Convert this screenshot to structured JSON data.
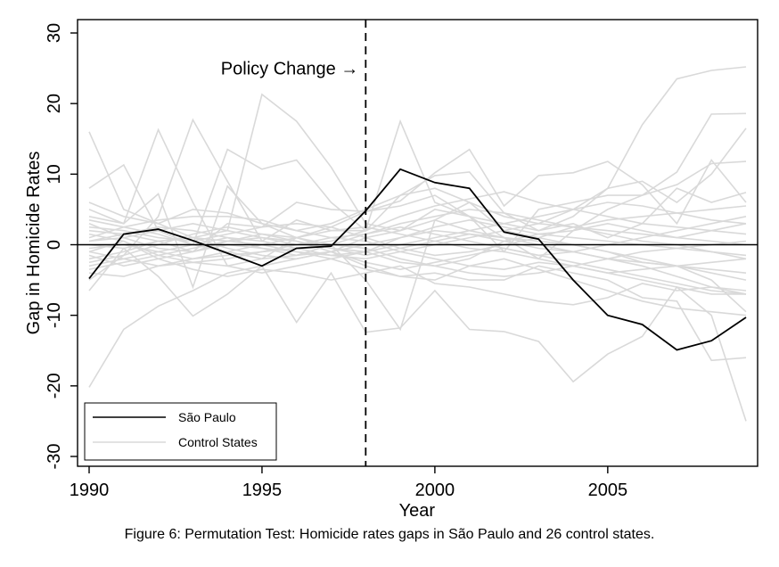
{
  "chart_data": {
    "type": "line",
    "ylabel": "Gap in Homicide Rates",
    "xlabel": "Year",
    "xlim": [
      1990,
      2009
    ],
    "ylim": [
      -30,
      30
    ],
    "x_ticks": [
      1990,
      1995,
      2000,
      2005
    ],
    "x_tick_labels": [
      "1990",
      "1995",
      "2000",
      "2005"
    ],
    "y_ticks": [
      -30,
      -20,
      -10,
      0,
      10,
      20,
      30
    ],
    "y_tick_labels": [
      "-30",
      "-20",
      "-10",
      "0",
      "10",
      "20",
      "30"
    ],
    "grid": false,
    "reference_lines": {
      "horizontal_y": 0,
      "vertical_x": 1998
    },
    "annotation": {
      "text": "Policy Change →",
      "x": 1998,
      "y": 25
    },
    "legend": {
      "position": "bottom-left",
      "entries": [
        "São Paulo",
        "Control States"
      ]
    },
    "colors": {
      "treated": "#000000",
      "controls": "#d9d9d9",
      "axis": "#000000"
    },
    "x": [
      1990,
      1991,
      1992,
      1993,
      1994,
      1995,
      1996,
      1997,
      1998,
      1999,
      2000,
      2001,
      2002,
      2003,
      2004,
      2005,
      2006,
      2007,
      2008,
      2009
    ],
    "series": [
      {
        "name": "São Paulo",
        "role": "treated",
        "values": [
          -4.8,
          1.5,
          2.2,
          0.6,
          -1.2,
          -3.0,
          -0.5,
          -0.2,
          4.8,
          10.7,
          8.8,
          8.0,
          1.8,
          0.8,
          -5.0,
          -10.0,
          -11.3,
          -14.9,
          -13.6,
          -10.3
        ]
      },
      {
        "role": "control",
        "values": [
          16.0,
          5.0,
          3.0,
          1.0,
          2.0,
          21.3,
          17.5,
          11.0,
          3.0,
          2.0,
          5.0,
          4.0,
          3.0,
          2.0,
          4.0,
          8.0,
          17.0,
          23.5,
          24.7,
          25.2
        ]
      },
      {
        "role": "control",
        "values": [
          8.0,
          11.3,
          2.0,
          0.0,
          13.5,
          10.7,
          12.0,
          6.0,
          2.0,
          17.5,
          6.0,
          4.0,
          1.0,
          -2.0,
          2.0,
          5.0,
          7.0,
          10.3,
          18.5,
          18.6
        ]
      },
      {
        "role": "control",
        "values": [
          5.0,
          3.0,
          16.3,
          6.0,
          -3.0,
          -2.0,
          1.0,
          0.0,
          -5.0,
          -12.0,
          3.5,
          6.0,
          2.0,
          3.0,
          5.0,
          8.0,
          9.0,
          6.0,
          10.0,
          16.5
        ]
      },
      {
        "role": "control",
        "values": [
          -20.2,
          -12.0,
          -8.7,
          -6.5,
          -4.0,
          -3.0,
          -2.0,
          -1.0,
          -3.0,
          -4.5,
          -4.0,
          -5.0,
          -5.0,
          -3.0,
          -4.0,
          -5.0,
          -7.5,
          -8.0,
          -16.4,
          -16.0
        ]
      },
      {
        "role": "control",
        "values": [
          -6.5,
          -0.5,
          -4.5,
          -10.1,
          -7.0,
          -3.0,
          -11.0,
          -4.0,
          -12.4,
          -11.8,
          -6.5,
          -12.0,
          -12.3,
          -13.7,
          -19.4,
          -15.5,
          -13.0,
          -6.0,
          -10.0,
          -25.0
        ]
      },
      {
        "role": "control",
        "values": [
          4.0,
          3.0,
          7.2,
          -6.0,
          8.3,
          3.0,
          1.0,
          2.5,
          4.7,
          6.2,
          10.2,
          13.5,
          5.5,
          9.8,
          10.2,
          11.8,
          8.5,
          3.0,
          12.0,
          6.0
        ]
      },
      {
        "role": "control",
        "values": [
          -5.0,
          -1.5,
          4.0,
          17.7,
          9.0,
          0.5,
          3.5,
          2.0,
          2.0,
          7.0,
          9.8,
          10.3,
          4.5,
          2.0,
          3.0,
          1.0,
          3.0,
          8.0,
          6.0,
          7.4
        ]
      },
      {
        "role": "control",
        "values": [
          2.0,
          1.5,
          0.5,
          -1.0,
          3.0,
          2.5,
          6.0,
          5.0,
          4.7,
          5.5,
          7.0,
          4.0,
          -1.0,
          5.0,
          6.0,
          7.0,
          7.0,
          8.5,
          11.5,
          11.8
        ]
      },
      {
        "role": "control",
        "values": [
          -1.0,
          0.5,
          -2.0,
          -3.5,
          -4.5,
          -3.5,
          -4.0,
          -5.0,
          -4.0,
          -3.0,
          -5.5,
          -6.0,
          -7.0,
          -8.0,
          -8.5,
          -7.5,
          -5.5,
          -6.5,
          -6.0,
          -6.5
        ]
      },
      {
        "role": "control",
        "values": [
          1.0,
          2.5,
          3.5,
          4.0,
          4.0,
          3.5,
          2.0,
          1.0,
          0.5,
          -1.0,
          -2.0,
          -3.0,
          -3.5,
          -2.5,
          -3.0,
          -4.0,
          -5.0,
          -6.0,
          -7.0,
          -7.0
        ]
      },
      {
        "role": "control",
        "values": [
          -2.0,
          -1.0,
          0.5,
          1.0,
          -0.5,
          -1.5,
          -2.0,
          -1.0,
          1.0,
          2.0,
          3.5,
          2.0,
          1.0,
          0.5,
          0.0,
          -1.0,
          -2.5,
          -3.0,
          -5.0,
          -9.5
        ]
      },
      {
        "role": "control",
        "values": [
          3.0,
          1.0,
          -0.5,
          -1.0,
          0.5,
          1.5,
          1.0,
          -0.5,
          -1.0,
          -2.5,
          -3.0,
          -2.0,
          0.5,
          1.5,
          2.0,
          3.0,
          2.0,
          1.0,
          2.0,
          3.0
        ]
      },
      {
        "role": "control",
        "values": [
          -3.0,
          -2.0,
          -1.0,
          0.0,
          1.0,
          0.5,
          -0.5,
          -1.5,
          -2.0,
          -1.0,
          0.0,
          1.0,
          2.0,
          1.0,
          0.0,
          -1.0,
          -2.0,
          -3.0,
          -4.0,
          -5.0
        ]
      },
      {
        "role": "control",
        "values": [
          0.5,
          1.0,
          2.0,
          3.0,
          2.0,
          1.0,
          0.0,
          0.5,
          2.0,
          4.0,
          5.5,
          6.5,
          7.5,
          6.0,
          5.0,
          4.0,
          3.0,
          2.5,
          2.0,
          1.5
        ]
      },
      {
        "role": "control",
        "values": [
          -1.5,
          -3.0,
          -2.0,
          -1.0,
          0.0,
          -0.5,
          -1.0,
          -2.0,
          -3.5,
          -4.5,
          -5.0,
          -3.0,
          -2.0,
          -3.5,
          -5.0,
          -6.5,
          -8.0,
          -9.0,
          -9.5,
          -10.0
        ]
      },
      {
        "role": "control",
        "values": [
          6.0,
          4.0,
          3.0,
          5.0,
          4.5,
          3.0,
          2.0,
          3.0,
          5.0,
          7.0,
          8.0,
          6.0,
          4.0,
          3.0,
          2.5,
          2.0,
          1.5,
          1.0,
          0.5,
          0.0
        ]
      },
      {
        "role": "control",
        "values": [
          -4.0,
          -4.5,
          -3.0,
          -2.5,
          -3.0,
          -4.0,
          -3.0,
          -2.0,
          -1.0,
          1.0,
          2.0,
          1.5,
          0.5,
          -0.5,
          -1.0,
          -2.0,
          -3.0,
          -4.5,
          -6.0,
          -7.0
        ]
      },
      {
        "role": "control",
        "values": [
          2.5,
          2.0,
          1.0,
          0.5,
          1.5,
          2.5,
          3.0,
          2.5,
          1.0,
          -0.5,
          -1.5,
          -1.0,
          0.0,
          1.0,
          2.5,
          3.5,
          4.0,
          4.5,
          5.0,
          5.5
        ]
      },
      {
        "role": "control",
        "values": [
          -0.5,
          0.0,
          -1.0,
          -2.0,
          -1.5,
          -1.0,
          -0.5,
          0.0,
          -0.5,
          -2.0,
          -3.0,
          -4.0,
          -4.5,
          -4.0,
          -3.0,
          -2.0,
          -1.0,
          -0.5,
          0.0,
          0.5
        ]
      },
      {
        "role": "control",
        "values": [
          1.5,
          0.5,
          -1.5,
          -2.5,
          -2.0,
          -1.0,
          0.0,
          1.0,
          1.5,
          3.0,
          4.0,
          5.0,
          4.5,
          3.5,
          2.5,
          1.5,
          0.5,
          0.0,
          -1.0,
          -2.0
        ]
      },
      {
        "role": "control",
        "values": [
          -2.5,
          -1.5,
          0.0,
          1.5,
          2.5,
          1.5,
          0.5,
          -1.0,
          -2.5,
          -3.5,
          -2.5,
          -1.5,
          -0.5,
          -1.5,
          -2.5,
          -3.5,
          -4.5,
          -5.5,
          -6.5,
          -7.0
        ]
      },
      {
        "role": "control",
        "values": [
          0.0,
          -0.5,
          0.5,
          1.0,
          0.5,
          0.0,
          -1.0,
          -1.5,
          -1.0,
          0.0,
          1.0,
          2.0,
          3.0,
          4.0,
          5.0,
          6.0,
          5.5,
          4.5,
          3.5,
          3.0
        ]
      },
      {
        "role": "control",
        "values": [
          3.5,
          2.5,
          1.5,
          0.0,
          -1.0,
          -2.0,
          -1.5,
          0.0,
          1.5,
          2.5,
          1.5,
          0.5,
          -0.5,
          -1.5,
          -1.0,
          0.0,
          1.0,
          2.0,
          3.0,
          4.0
        ]
      },
      {
        "role": "control",
        "values": [
          -1.0,
          -2.0,
          -3.0,
          -2.0,
          -1.0,
          0.0,
          1.0,
          2.0,
          2.5,
          1.5,
          0.5,
          -0.5,
          -1.0,
          -2.0,
          -3.0,
          -4.0,
          -3.5,
          -3.0,
          -2.5,
          -2.0
        ]
      },
      {
        "role": "control",
        "values": [
          0.5,
          1.5,
          2.5,
          2.0,
          1.0,
          -0.5,
          -1.5,
          -1.0,
          0.0,
          1.0,
          2.5,
          3.5,
          2.5,
          1.5,
          1.0,
          0.5,
          0.0,
          -0.5,
          -1.0,
          -1.5
        ]
      },
      {
        "role": "control",
        "values": [
          -3.5,
          -2.5,
          -1.5,
          -0.5,
          0.5,
          1.0,
          0.5,
          -0.5,
          -1.5,
          -0.5,
          0.5,
          1.5,
          1.0,
          0.0,
          -1.0,
          -2.0,
          -2.5,
          -3.0,
          -3.5,
          -4.0
        ]
      }
    ]
  },
  "caption": "Figure 6: Permutation Test: Homicide rates gaps in São Paulo and 26 control states."
}
